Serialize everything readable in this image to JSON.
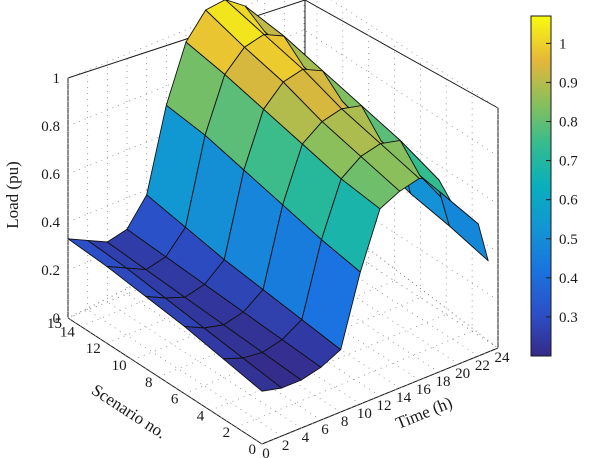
{
  "chart_data": {
    "type": "surface",
    "title": "",
    "xlabel": "Time (h)",
    "ylabel": "Scenario no.",
    "zlabel": "Load (pu)",
    "x_ticks": [
      0,
      2,
      4,
      6,
      8,
      10,
      12,
      14,
      16,
      18,
      20,
      22,
      24
    ],
    "y_ticks": [
      0,
      2,
      4,
      6,
      8,
      10,
      12,
      14,
      15
    ],
    "z_ticks": [
      0,
      0.2,
      0.4,
      0.6,
      0.8,
      1
    ],
    "xlim": [
      0,
      24
    ],
    "ylim": [
      0,
      15
    ],
    "zlim": [
      0,
      1
    ],
    "colorbar": {
      "ticks": [
        0.3,
        0.4,
        0.5,
        0.6,
        0.7,
        0.8,
        0.9,
        1
      ],
      "range": [
        0.2,
        1.07
      ],
      "colormap": "parula"
    },
    "grid": true,
    "scenarios": [
      0,
      3,
      6,
      9,
      12,
      15
    ],
    "hours": [
      0,
      2,
      4,
      6,
      8,
      10,
      12,
      14,
      16,
      18,
      20,
      22,
      23
    ],
    "load": [
      [
        0.22,
        0.2,
        0.2,
        0.22,
        0.26,
        0.55,
        0.78,
        0.82,
        0.84,
        0.8,
        0.62,
        0.55,
        0.38
      ],
      [
        0.25,
        0.22,
        0.21,
        0.23,
        0.28,
        0.58,
        0.8,
        0.86,
        0.88,
        0.86,
        0.68,
        0.58,
        0.42
      ],
      [
        0.28,
        0.24,
        0.22,
        0.24,
        0.3,
        0.62,
        0.84,
        0.9,
        0.92,
        0.9,
        0.72,
        0.62,
        0.45
      ],
      [
        0.3,
        0.26,
        0.23,
        0.25,
        0.32,
        0.66,
        0.88,
        0.96,
        0.98,
        0.94,
        0.78,
        0.66,
        0.5
      ],
      [
        0.32,
        0.28,
        0.24,
        0.26,
        0.35,
        0.7,
        0.92,
        1.0,
        1.02,
        0.98,
        0.82,
        0.7,
        0.55
      ],
      [
        0.33,
        0.29,
        0.25,
        0.27,
        0.38,
        0.72,
        0.95,
        1.05,
        1.06,
        1.0,
        0.86,
        0.74,
        0.6
      ]
    ]
  }
}
